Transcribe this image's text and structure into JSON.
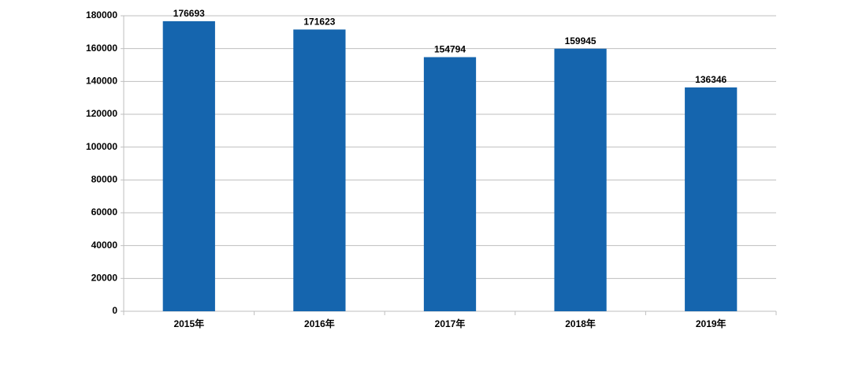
{
  "chart_data": {
    "type": "bar",
    "categories": [
      "2015年",
      "2016年",
      "2017年",
      "2018年",
      "2019年"
    ],
    "values": [
      176693,
      171623,
      154794,
      159945,
      136346
    ],
    "color": "#1565ae",
    "ylim": [
      0,
      180000
    ],
    "yticks": [
      0,
      20000,
      40000,
      60000,
      80000,
      100000,
      120000,
      140000,
      160000,
      180000
    ],
    "grid": true
  }
}
